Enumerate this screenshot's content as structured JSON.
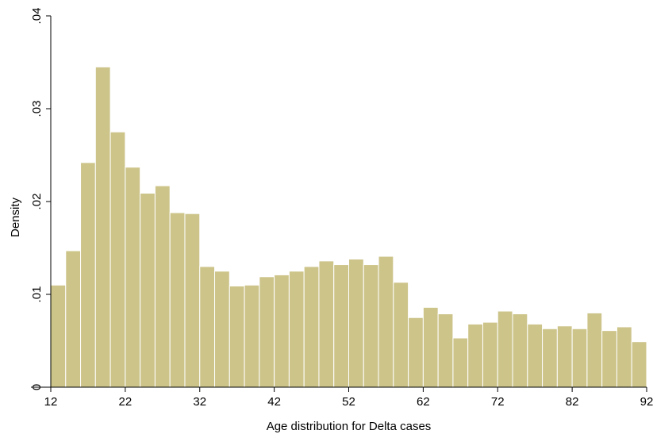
{
  "chart_data": {
    "type": "bar",
    "title": "",
    "xlabel": "Age distribution for Delta cases",
    "ylabel": "Density",
    "xlim": [
      12,
      92
    ],
    "ylim": [
      0,
      0.04
    ],
    "grid": false,
    "legend": "none",
    "bar_color": "#cdc48a",
    "bar_edge_color": "#ffffff",
    "bin_start": 12,
    "bin_width": 2,
    "x_ticks": [
      {
        "value": 12,
        "label": "12"
      },
      {
        "value": 22,
        "label": "22"
      },
      {
        "value": 32,
        "label": "32"
      },
      {
        "value": 42,
        "label": "42"
      },
      {
        "value": 52,
        "label": "52"
      },
      {
        "value": 62,
        "label": "62"
      },
      {
        "value": 72,
        "label": "72"
      },
      {
        "value": 82,
        "label": "82"
      },
      {
        "value": 92,
        "label": "92"
      }
    ],
    "y_ticks": [
      {
        "value": 0,
        "label": "0"
      },
      {
        "value": 0.01,
        "label": ".01"
      },
      {
        "value": 0.02,
        "label": ".02"
      },
      {
        "value": 0.03,
        "label": ".03"
      },
      {
        "value": 0.04,
        "label": ".04"
      }
    ],
    "values": [
      0.011,
      0.0147,
      0.0242,
      0.0345,
      0.0275,
      0.0237,
      0.0209,
      0.0217,
      0.0188,
      0.0187,
      0.013,
      0.0125,
      0.0109,
      0.011,
      0.0119,
      0.0121,
      0.0125,
      0.013,
      0.0136,
      0.0132,
      0.0138,
      0.0132,
      0.0141,
      0.0113,
      0.0075,
      0.0086,
      0.0079,
      0.0053,
      0.0068,
      0.007,
      0.0082,
      0.0079,
      0.0068,
      0.0063,
      0.0066,
      0.0063,
      0.008,
      0.0061,
      0.0065,
      0.0049
    ]
  }
}
